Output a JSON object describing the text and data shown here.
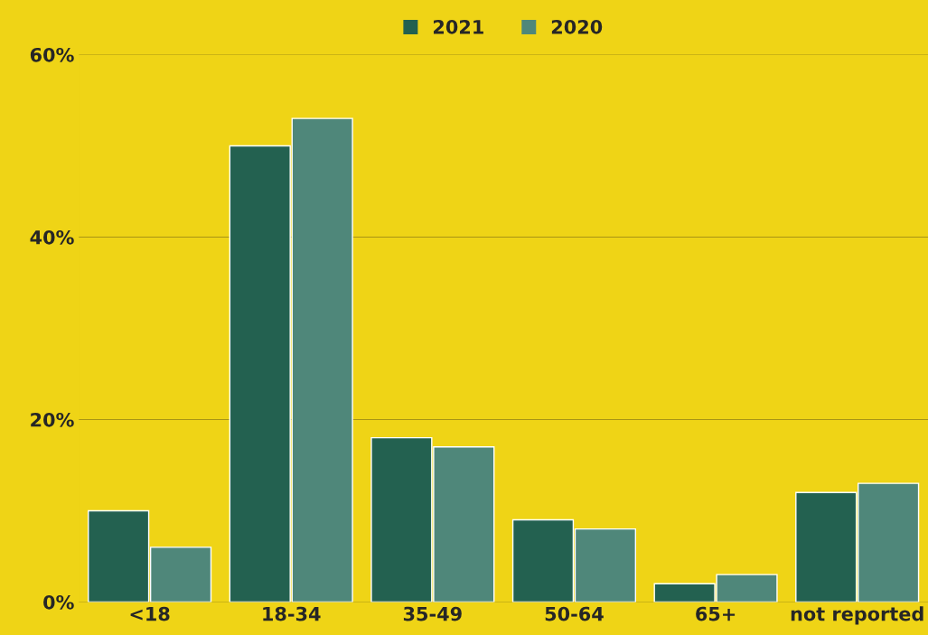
{
  "chart_data": {
    "type": "bar",
    "categories": [
      "<18",
      "18-34",
      "35-49",
      "50-64",
      "65+",
      "not reported"
    ],
    "series": [
      {
        "name": "2021",
        "color": "#236150",
        "values": [
          10,
          50,
          18,
          9,
          2,
          12
        ]
      },
      {
        "name": "2020",
        "color": "#4f877a",
        "values": [
          6,
          53,
          17,
          8,
          3,
          13
        ]
      }
    ],
    "ylim": [
      0,
      60
    ],
    "yticks": [
      {
        "value": 0,
        "label": "0%"
      },
      {
        "value": 20,
        "label": "20%"
      },
      {
        "value": 40,
        "label": "40%"
      },
      {
        "value": 60,
        "label": "60%"
      }
    ],
    "grid": "y",
    "legend": "top"
  }
}
